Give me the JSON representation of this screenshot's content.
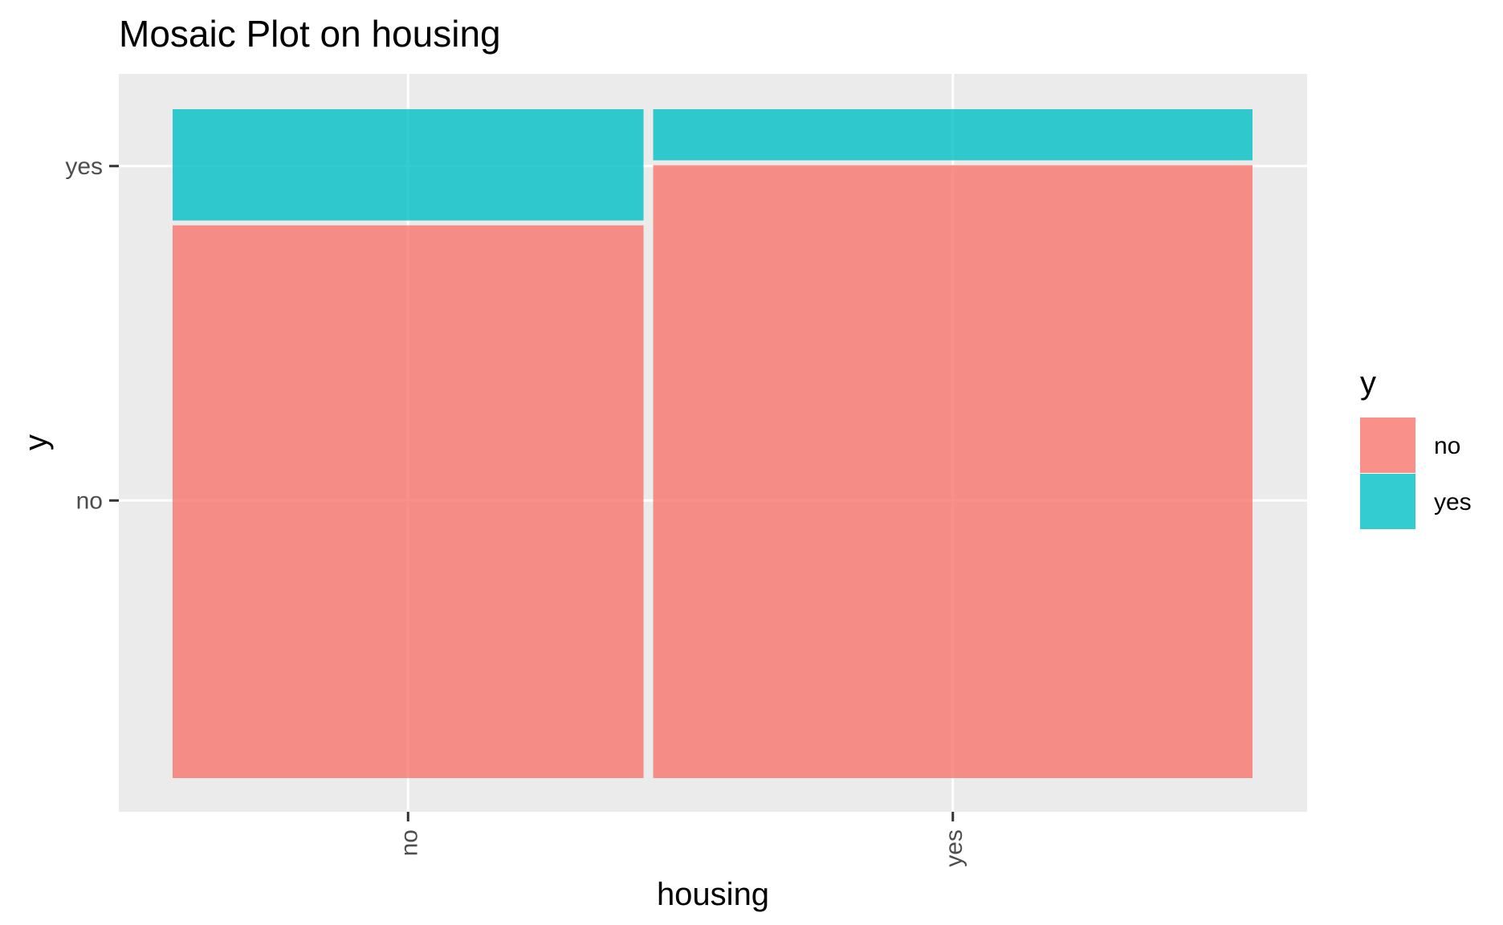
{
  "chart_data": {
    "type": "mosaic",
    "title": "Mosaic Plot on housing",
    "xlabel": "housing",
    "ylabel": "y",
    "categories": [
      "no",
      "yes"
    ],
    "category_widths": [
      0.44,
      0.56
    ],
    "series": [
      {
        "name": "no",
        "values": [
          0.83,
          0.92
        ]
      },
      {
        "name": "yes",
        "values": [
          0.17,
          0.08
        ]
      }
    ],
    "x_tick_labels": [
      "no",
      "yes"
    ],
    "y_tick_labels": [
      "no",
      "yes"
    ],
    "legend": {
      "title": "y",
      "entries": [
        "no",
        "yes"
      ],
      "placement": "right"
    },
    "grid": true,
    "colors": {
      "no": "#F8766D",
      "yes": "#00BFC4",
      "panel": "#EBEBEB",
      "grid": "#FFFFFF"
    }
  }
}
